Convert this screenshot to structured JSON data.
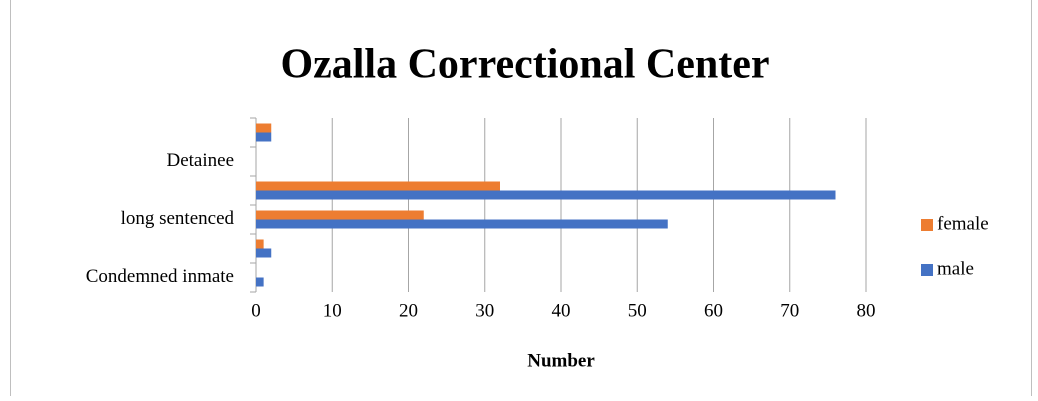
{
  "chart_data": {
    "type": "bar",
    "orientation": "horizontal",
    "title": "Ozalla Correctional Center",
    "xlabel": "Number",
    "categories": [
      "Condemned inmate",
      null,
      "long sentenced",
      null,
      "Detainee",
      null
    ],
    "series": [
      {
        "name": "male",
        "color": "#4472c4",
        "values": [
          1,
          2,
          54,
          76,
          0,
          2
        ]
      },
      {
        "name": "female",
        "color": "#ed7d31",
        "values": [
          0,
          1,
          22,
          32,
          0,
          2
        ]
      }
    ],
    "xlim": [
      0,
      80
    ],
    "xticks": [
      0,
      10,
      20,
      30,
      40,
      50,
      60,
      70,
      80
    ],
    "grid": true,
    "legend": "right"
  }
}
